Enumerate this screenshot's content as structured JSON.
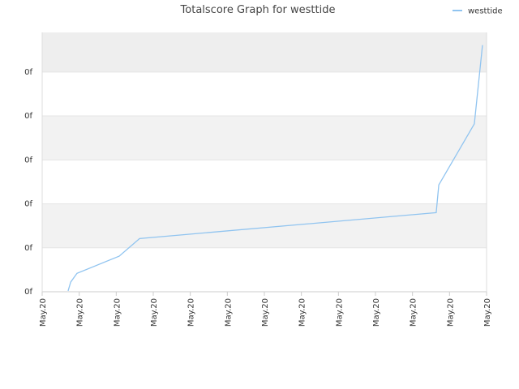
{
  "chart_data": {
    "type": "line",
    "title": "Totalscore Graph for westtide",
    "series": [
      {
        "name": "westtide",
        "color": "#90c4f0",
        "x": [
          0.7,
          0.77,
          0.94,
          2.08,
          2.63,
          10.64,
          10.71,
          11.67,
          11.89
        ],
        "values": [
          0.02,
          0.22,
          0.42,
          0.81,
          1.21,
          1.8,
          2.43,
          3.82,
          5.61
        ]
      }
    ],
    "xlim": [
      0,
      12
    ],
    "xticks": [
      {
        "value": 0,
        "label": "May.20"
      },
      {
        "value": 1,
        "label": "May.20"
      },
      {
        "value": 2,
        "label": "May.20"
      },
      {
        "value": 3,
        "label": "May.20"
      },
      {
        "value": 4,
        "label": "May.20"
      },
      {
        "value": 5,
        "label": "May.20"
      },
      {
        "value": 6,
        "label": "May.20"
      },
      {
        "value": 7,
        "label": "May.20"
      },
      {
        "value": 8,
        "label": "May.20"
      },
      {
        "value": 9,
        "label": "May.20"
      },
      {
        "value": 10,
        "label": "May.20"
      },
      {
        "value": 11,
        "label": "May.20"
      },
      {
        "value": 12,
        "label": "May.20"
      }
    ],
    "ylim": [
      0,
      5.9
    ],
    "yticks": [
      {
        "value": 0,
        "label": "0f"
      },
      {
        "value": 1,
        "label": "0f"
      },
      {
        "value": 2,
        "label": "0f"
      },
      {
        "value": 3,
        "label": "0f"
      },
      {
        "value": 4,
        "label": "0f"
      },
      {
        "value": 5,
        "label": "0f"
      }
    ],
    "grid": true,
    "legend": "top-right"
  }
}
